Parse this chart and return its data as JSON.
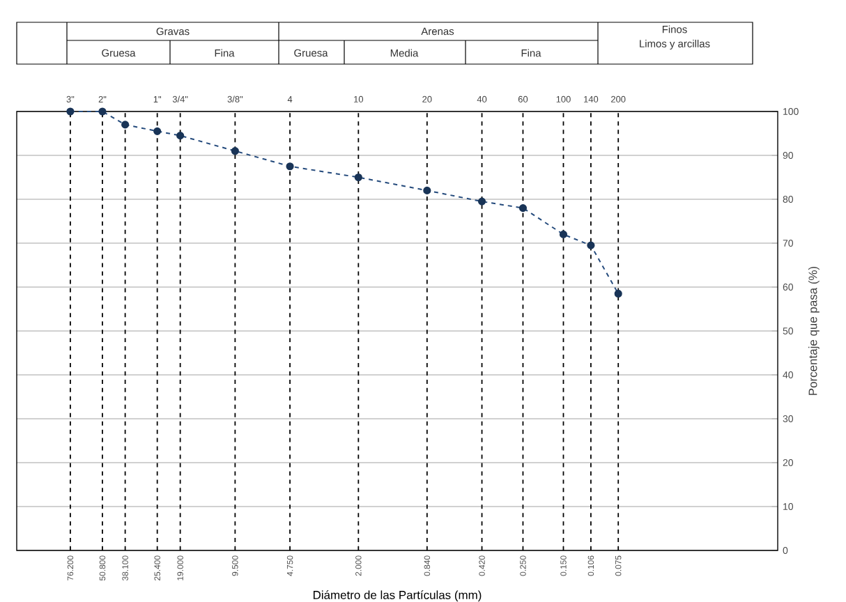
{
  "chart_data": {
    "type": "line",
    "xlabel": "Diámetro de las Partículas (mm)",
    "ylabel": "Porcentaje que pasa (%)",
    "log": "x",
    "x": [
      76.2,
      50.8,
      38.1,
      25.4,
      19.0,
      9.5,
      4.75,
      2.0,
      0.84,
      0.42,
      0.25,
      0.15,
      0.106,
      0.075
    ],
    "series": [
      {
        "color": "#244a7c",
        "values": [
          100,
          100,
          97,
          95.5,
          94.5,
          91,
          87.5,
          85,
          82,
          79.5,
          78,
          72,
          69.5,
          58.5
        ]
      }
    ],
    "xlim": [
      150,
      0.01
    ],
    "ylim": [
      0,
      100
    ],
    "xticks": [
      {
        "value": 76.2,
        "label": "76.200"
      },
      {
        "value": 50.8,
        "label": "50.800"
      },
      {
        "value": 38.1,
        "label": "38.100"
      },
      {
        "value": 25.4,
        "label": "25.400"
      },
      {
        "value": 19.0,
        "label": "19.000"
      },
      {
        "value": 9.5,
        "label": "9.500"
      },
      {
        "value": 4.75,
        "label": "4.750"
      },
      {
        "value": 2.0,
        "label": "2.000"
      },
      {
        "value": 0.84,
        "label": "0.840"
      },
      {
        "value": 0.42,
        "label": "0.420"
      },
      {
        "value": 0.25,
        "label": "0.250"
      },
      {
        "value": 0.15,
        "label": "0.150"
      },
      {
        "value": 0.106,
        "label": "0.106"
      },
      {
        "value": 0.075,
        "label": "0.075"
      }
    ],
    "yticks": [
      0,
      10,
      20,
      30,
      40,
      50,
      60,
      70,
      80,
      90,
      100
    ],
    "ref_lines": [
      {
        "axis": "x",
        "value": 76.2,
        "line_style": "dashed"
      },
      {
        "axis": "x",
        "value": 50.8,
        "line_style": "dashed"
      },
      {
        "axis": "x",
        "value": 38.1,
        "line_style": "dashed"
      },
      {
        "axis": "x",
        "value": 25.4,
        "line_style": "dashed"
      },
      {
        "axis": "x",
        "value": 19.0,
        "line_style": "dashed"
      },
      {
        "axis": "x",
        "value": 9.5,
        "line_style": "dashed"
      },
      {
        "axis": "x",
        "value": 4.75,
        "line_style": "dashed"
      },
      {
        "axis": "x",
        "value": 2.0,
        "line_style": "dashed"
      },
      {
        "axis": "x",
        "value": 0.84,
        "line_style": "dashed"
      },
      {
        "axis": "x",
        "value": 0.42,
        "line_style": "dashed"
      },
      {
        "axis": "x",
        "value": 0.25,
        "line_style": "dashed"
      },
      {
        "axis": "x",
        "value": 0.15,
        "line_style": "dashed"
      },
      {
        "axis": "x",
        "value": 0.106,
        "line_style": "dashed"
      },
      {
        "axis": "x",
        "value": 0.075,
        "line_style": "dashed"
      }
    ],
    "grid": "y",
    "marker": "circle",
    "line_style": "dashed",
    "annotations": [
      "Gravas",
      "Gruesa",
      "Fina",
      "Arenas",
      "Gruesa",
      "Media",
      "Fina",
      "Finos",
      "Limos y arcillas",
      {
        "text": "3\"",
        "x": 76.2,
        "y": 100
      },
      {
        "text": "2\"",
        "x": 50.8,
        "y": 100
      },
      {
        "text": "1\"",
        "x": 25.4,
        "y": 100
      },
      {
        "text": "3/4\"",
        "x": 19.0,
        "y": 100
      },
      {
        "text": "3/8\"",
        "x": 9.5,
        "y": 100
      },
      {
        "text": "4",
        "x": 4.75,
        "y": 100
      },
      {
        "text": "10",
        "x": 2.0,
        "y": 100
      },
      {
        "text": "20",
        "x": 0.84,
        "y": 100
      },
      {
        "text": "40",
        "x": 0.42,
        "y": 100
      },
      {
        "text": "60",
        "x": 0.25,
        "y": 100
      },
      {
        "text": "100",
        "x": 0.15,
        "y": 100
      },
      {
        "text": "140",
        "x": 0.106,
        "y": 100
      },
      {
        "text": "200",
        "x": 0.075,
        "y": 100
      }
    ]
  }
}
